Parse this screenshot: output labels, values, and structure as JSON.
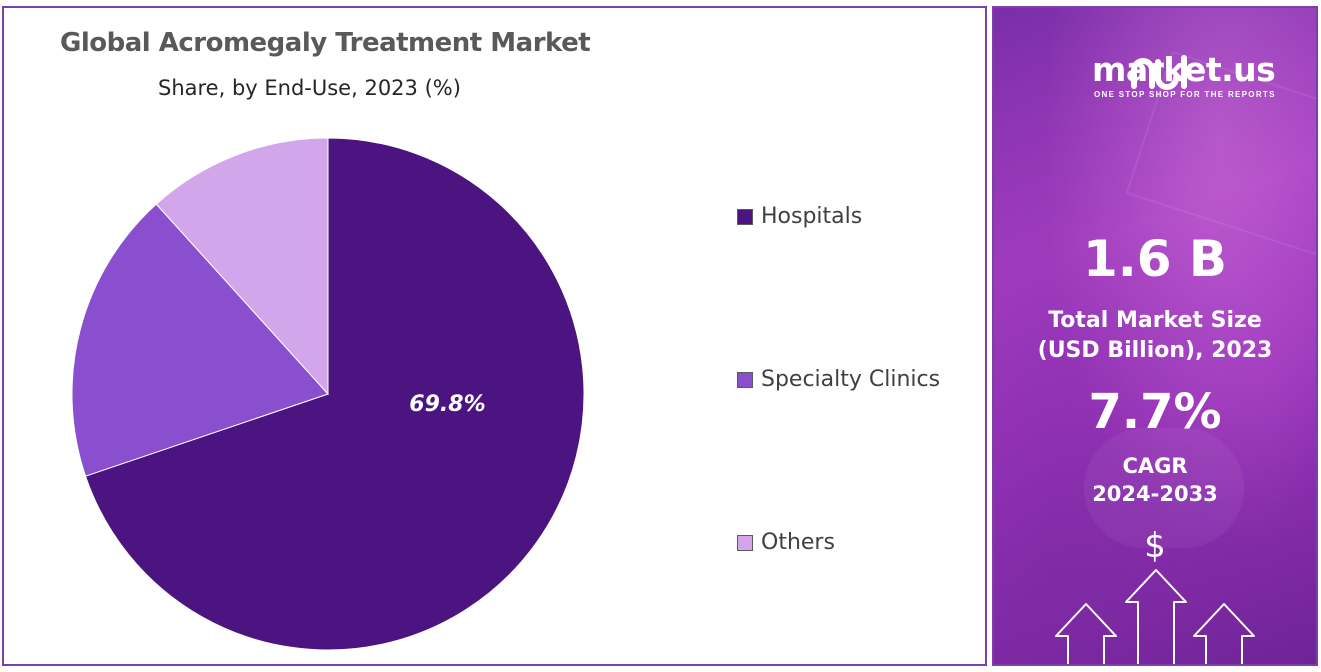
{
  "chart_data": {
    "type": "pie",
    "title": "Global Acromegaly Treatment Market",
    "subtitle": "Share, by End-Use, 2023 (%)",
    "categories": [
      "Hospitals",
      "Specialty Clinics",
      "Others"
    ],
    "values": [
      69.8,
      18.5,
      11.7
    ],
    "data_labels": [
      "69.8%",
      "",
      ""
    ],
    "colors": [
      "#4b1480",
      "#8a4fcf",
      "#d3a6ec"
    ],
    "legend_position": "right"
  },
  "brand": {
    "name": "market.us",
    "tagline": "ONE STOP SHOP FOR THE REPORTS",
    "logo_icon": "market-us-logo-icon"
  },
  "stats": {
    "market_size_value": "1.6 B",
    "market_size_label_line1": "Total Market Size",
    "market_size_label_line2": "(USD Billion), 2023",
    "cagr_value": "7.7%",
    "cagr_label_line1": "CAGR",
    "cagr_label_line2": "2024-2033",
    "currency_symbol": "$"
  }
}
